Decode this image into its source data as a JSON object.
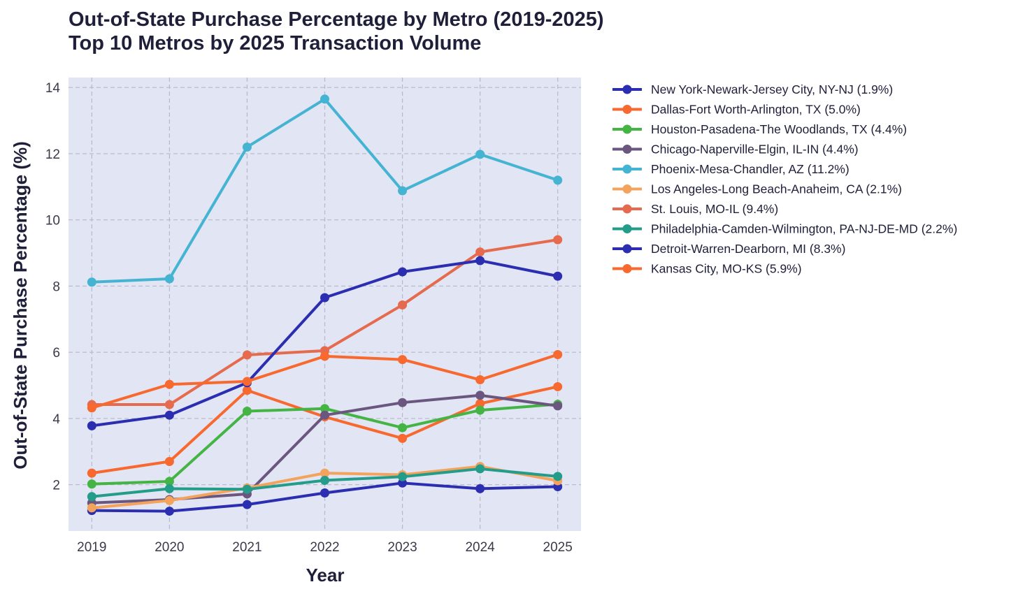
{
  "chart_data": {
    "type": "line",
    "title_line1": "Out-of-State Purchase Percentage by Metro (2019-2025)",
    "title_line2": "Top 10 Metros by 2025 Transaction Volume",
    "xlabel": "Year",
    "ylabel": "Out-of-State Purchase Percentage (%)",
    "x": [
      2019,
      2020,
      2021,
      2022,
      2023,
      2024,
      2025
    ],
    "xlim": [
      2018.7,
      2025.3
    ],
    "ylim": [
      0.6,
      14.3
    ],
    "yticks": [
      2,
      4,
      6,
      8,
      10,
      12,
      14
    ],
    "grid": true,
    "legend_position": "outside-right",
    "background_color": "#e2e5f3",
    "series": [
      {
        "name": "New York-Newark-Jersey City, NY-NJ (1.9%)",
        "color": "#2b2eb0",
        "values": [
          1.22,
          1.2,
          1.4,
          1.75,
          2.05,
          1.88,
          1.94
        ]
      },
      {
        "name": "Dallas-Fort Worth-Arlington, TX (5.0%)",
        "color": "#f7692f",
        "values": [
          2.35,
          2.7,
          4.85,
          4.05,
          3.4,
          4.45,
          4.96
        ]
      },
      {
        "name": "Houston-Pasadena-The Woodlands, TX (4.4%)",
        "color": "#44b544",
        "values": [
          2.02,
          2.1,
          4.22,
          4.3,
          3.72,
          4.25,
          4.43
        ]
      },
      {
        "name": "Chicago-Naperville-Elgin, IL-IN (4.4%)",
        "color": "#6b5680",
        "values": [
          1.45,
          1.55,
          1.72,
          4.1,
          4.48,
          4.7,
          4.38
        ]
      },
      {
        "name": "Phoenix-Mesa-Chandler, AZ (11.2%)",
        "color": "#45b4d2",
        "values": [
          8.12,
          8.22,
          12.2,
          13.65,
          10.88,
          11.98,
          11.2
        ]
      },
      {
        "name": "Los Angeles-Long Beach-Anaheim, CA (2.1%)",
        "color": "#f4a35c",
        "values": [
          1.3,
          1.52,
          1.9,
          2.35,
          2.3,
          2.55,
          2.12
        ]
      },
      {
        "name": "St. Louis, MO-IL (9.4%)",
        "color": "#e66b4e",
        "values": [
          4.42,
          4.42,
          5.92,
          6.05,
          7.43,
          9.03,
          9.4
        ]
      },
      {
        "name": "Philadelphia-Camden-Wilmington, PA-NJ-DE-MD (2.2%)",
        "color": "#239c8a",
        "values": [
          1.64,
          1.88,
          1.86,
          2.13,
          2.24,
          2.48,
          2.25
        ]
      },
      {
        "name": "Detroit-Warren-Dearborn, MI (8.3%)",
        "color": "#2b2eb0",
        "values": [
          3.78,
          4.1,
          5.08,
          7.65,
          8.43,
          8.77,
          8.3
        ]
      },
      {
        "name": "Kansas City, MO-KS (5.9%)",
        "color": "#f7692f",
        "values": [
          4.32,
          5.03,
          5.12,
          5.88,
          5.78,
          5.17,
          5.93
        ]
      }
    ]
  }
}
